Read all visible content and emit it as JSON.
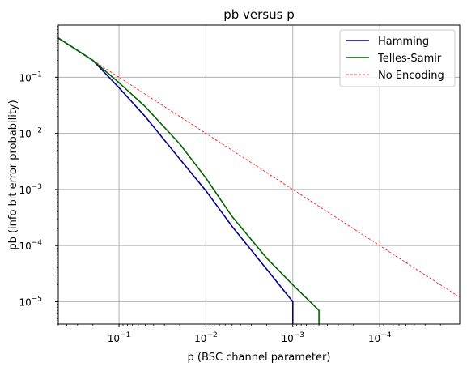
{
  "chart_data": {
    "type": "line",
    "title": "pb versus p",
    "xlabel": "p (BSC channel parameter)",
    "ylabel": "pb (info bit error probability)",
    "xscale": "log",
    "yscale": "log",
    "x_direction": "decreasing",
    "xlim": [
      0.5,
      1.2e-05
    ],
    "ylim": [
      4e-06,
      0.85
    ],
    "xticks": [
      {
        "value": 0.1,
        "base": "10",
        "exp": "−1"
      },
      {
        "value": 0.01,
        "base": "10",
        "exp": "−2"
      },
      {
        "value": 0.001,
        "base": "10",
        "exp": "−3"
      },
      {
        "value": 0.0001,
        "base": "10",
        "exp": "−4"
      }
    ],
    "yticks": [
      {
        "value": 0.1,
        "base": "10",
        "exp": "−1"
      },
      {
        "value": 0.01,
        "base": "10",
        "exp": "−2"
      },
      {
        "value": 0.001,
        "base": "10",
        "exp": "−3"
      },
      {
        "value": 0.0001,
        "base": "10",
        "exp": "−4"
      },
      {
        "value": 1e-05,
        "base": "10",
        "exp": "−5"
      }
    ],
    "grid": true,
    "legend_position": "top-right",
    "series": [
      {
        "name": "Hamming",
        "color": "#00008b",
        "style": "solid",
        "points": [
          [
            0.5,
            0.5
          ],
          [
            0.2,
            0.2
          ],
          [
            0.1,
            0.065
          ],
          [
            0.05,
            0.02
          ],
          [
            0.02,
            0.0035
          ],
          [
            0.01,
            0.00095
          ],
          [
            0.005,
            0.00022
          ],
          [
            0.002,
            3.8e-05
          ],
          [
            0.001,
            1e-05
          ],
          [
            0.001,
            4e-06
          ]
        ]
      },
      {
        "name": "Telles-Samir",
        "color": "#006400",
        "style": "solid",
        "points": [
          [
            0.5,
            0.5
          ],
          [
            0.2,
            0.2
          ],
          [
            0.1,
            0.08
          ],
          [
            0.05,
            0.03
          ],
          [
            0.02,
            0.0065
          ],
          [
            0.01,
            0.0016
          ],
          [
            0.005,
            0.00033
          ],
          [
            0.002,
            6e-05
          ],
          [
            0.001,
            2e-05
          ],
          [
            0.0005,
            7e-06
          ],
          [
            0.0005,
            4e-06
          ]
        ]
      },
      {
        "name": "No Encoding",
        "color": "#ff0000",
        "style": "dashed",
        "points": [
          [
            0.2,
            0.2
          ],
          [
            1.2e-05,
            1.2e-05
          ]
        ]
      }
    ]
  }
}
